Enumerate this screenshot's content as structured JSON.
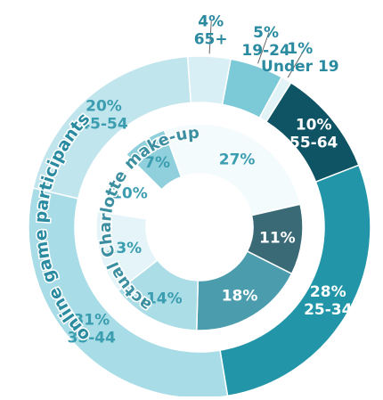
{
  "chart_data": {
    "type": "donut",
    "categories": [
      "65+",
      "19-24",
      "Under 19",
      "55-64",
      "25-34",
      "35-44",
      "45-54"
    ],
    "series": [
      {
        "name": "online game participants",
        "values": [
          4,
          5,
          1,
          10,
          28,
          31,
          20
        ],
        "value_labels": [
          "4%",
          "5%",
          "1%",
          "10%",
          "28%",
          "31%",
          "20%"
        ],
        "colors": [
          "#d8eff5",
          "#7ccad8",
          "#e2f3f7",
          "#0f5465",
          "#2296a8",
          "#a8dce6",
          "#c0e5ed"
        ]
      },
      {
        "name": "actual Charlotte make-up",
        "values": [
          27,
          11,
          18,
          14,
          13,
          10,
          7
        ],
        "value_labels": [
          "27%",
          "11%",
          "18%",
          "14%",
          "13%",
          "10%",
          "7%"
        ],
        "colors": [
          "#f4fbfc",
          "#3a6a76",
          "#4b9dae",
          "#abdde7",
          "#e4f4f8",
          "#ffffff",
          "#8fd0dc"
        ]
      }
    ]
  }
}
